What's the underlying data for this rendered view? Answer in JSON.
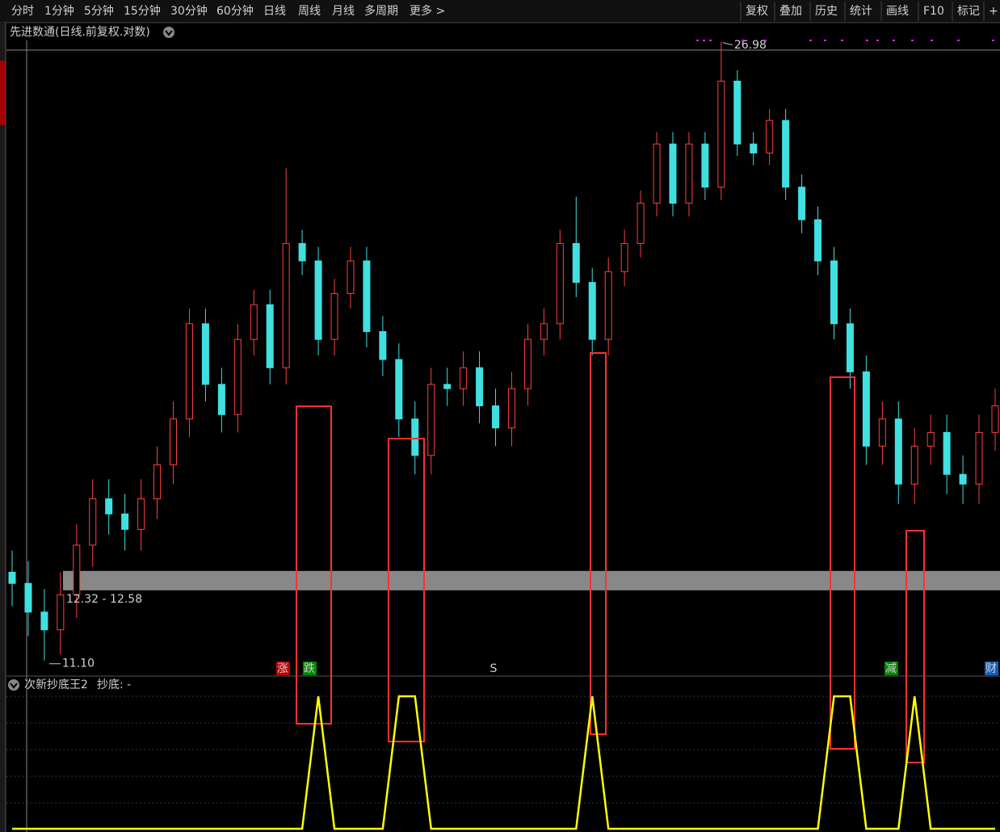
{
  "toolbar": {
    "periods": [
      "分时",
      "1分钟",
      "5分钟",
      "15分钟",
      "30分钟",
      "60分钟",
      "日线",
      "周线",
      "月线",
      "多周期",
      "更多 >"
    ],
    "active_index": 6,
    "tools": [
      "复权",
      "叠加",
      "历史",
      "统计",
      "画线",
      "F10",
      "标记",
      "+自"
    ]
  },
  "chart_title": "先进数通(日线.前复权.对数)",
  "high_label": "26.98",
  "low_label": "11.10",
  "band_label": "12.32 - 12.58",
  "band_range": [
    12.32,
    12.58
  ],
  "markers": [
    {
      "label": "涨",
      "color": "#c00000"
    },
    {
      "label": "跌",
      "color": "#008800"
    },
    {
      "label": "S",
      "color": "#ff2020"
    },
    {
      "label": "减",
      "color": "#008800"
    },
    {
      "label": "财",
      "color": "#1060c0"
    }
  ],
  "chart_data": [
    {
      "type": "candlestick",
      "log_scale": true,
      "ylim": [
        10.88,
        27.67
      ],
      "up_color": "#ff4040",
      "down_color": "#40e0e0",
      "open": [
        12.6,
        12.4,
        11.9,
        11.6,
        12.2,
        13.1,
        14.0,
        13.7,
        13.4,
        14.0,
        14.7,
        15.7,
        18.0,
        16.5,
        15.8,
        17.6,
        18.5,
        16.9,
        20.2,
        19.7,
        17.6,
        18.8,
        19.7,
        17.8,
        17.1,
        15.7,
        14.9,
        16.5,
        16.4,
        16.9,
        16.0,
        15.5,
        16.4,
        17.6,
        18.0,
        20.2,
        19.1,
        17.6,
        19.4,
        20.2,
        21.4,
        23.3,
        21.4,
        23.3,
        21.9,
        25.5,
        23.3,
        23.0,
        24.1,
        21.9,
        20.9,
        19.7,
        18.0,
        16.8,
        15.1,
        15.7,
        14.3,
        15.1,
        15.4,
        14.5,
        14.3,
        15.4
      ],
      "high": [
        13.0,
        12.8,
        12.3,
        12.6,
        13.5,
        14.4,
        14.4,
        14.1,
        14.4,
        15.1,
        16.1,
        18.4,
        18.4,
        16.9,
        18.0,
        18.9,
        18.9,
        22.5,
        20.6,
        20.1,
        19.2,
        20.1,
        20.1,
        18.2,
        17.5,
        16.1,
        16.9,
        16.9,
        17.3,
        17.3,
        16.4,
        16.8,
        18.0,
        18.4,
        20.6,
        21.6,
        19.5,
        19.8,
        20.6,
        21.8,
        23.7,
        23.7,
        23.7,
        23.7,
        26.98,
        25.9,
        23.7,
        24.5,
        24.5,
        22.3,
        21.3,
        20.1,
        18.4,
        17.2,
        16.1,
        16.1,
        15.5,
        15.8,
        15.8,
        14.9,
        15.8,
        16.4
      ],
      "low": [
        12.0,
        11.5,
        11.1,
        11.2,
        11.8,
        12.7,
        13.3,
        13.0,
        13.0,
        13.6,
        14.3,
        15.3,
        16.1,
        15.4,
        15.4,
        17.2,
        16.5,
        16.5,
        19.3,
        17.2,
        17.2,
        18.4,
        17.4,
        16.7,
        15.3,
        14.5,
        14.5,
        16.0,
        16.0,
        15.6,
        15.1,
        15.1,
        16.0,
        17.2,
        17.6,
        18.7,
        17.2,
        17.2,
        19.0,
        19.8,
        21.0,
        21.0,
        21.0,
        21.5,
        21.5,
        22.9,
        22.6,
        22.6,
        21.5,
        20.5,
        19.3,
        17.6,
        16.4,
        14.7,
        14.7,
        13.9,
        13.9,
        14.7,
        14.1,
        13.9,
        13.9,
        15.0
      ],
      "close": [
        12.4,
        11.9,
        11.6,
        12.2,
        13.1,
        14.0,
        13.7,
        13.4,
        14.0,
        14.7,
        15.7,
        18.0,
        16.5,
        15.8,
        17.6,
        18.5,
        16.9,
        20.2,
        19.7,
        17.6,
        18.8,
        19.7,
        17.8,
        17.1,
        15.7,
        14.9,
        16.5,
        16.4,
        16.9,
        16.0,
        15.5,
        16.4,
        17.6,
        18.0,
        20.2,
        19.1,
        17.6,
        19.4,
        20.2,
        21.4,
        23.3,
        21.4,
        23.3,
        21.9,
        25.5,
        23.3,
        23.0,
        24.1,
        21.9,
        20.9,
        19.7,
        18.0,
        16.8,
        15.1,
        15.7,
        14.3,
        15.1,
        15.4,
        14.5,
        14.3,
        15.4,
        16.0
      ]
    },
    {
      "type": "line",
      "title": "次新抄底王2",
      "ylim": [
        0,
        1.2
      ],
      "series": [
        {
          "name": "抄底",
          "readout": ": -",
          "color": "#ffff00",
          "values": [
            0,
            0,
            0,
            0,
            0,
            0,
            0,
            0,
            0,
            0,
            0,
            0,
            0,
            0,
            0,
            0,
            0,
            0,
            0,
            1,
            0,
            0,
            0,
            0,
            1,
            1,
            0,
            0,
            0,
            0,
            0,
            0,
            0,
            0,
            0,
            0,
            1,
            0,
            0,
            0,
            0,
            0,
            0,
            0,
            0,
            0,
            0,
            0,
            0,
            0,
            0,
            1,
            1,
            0,
            0,
            0,
            1,
            0,
            0,
            0,
            0,
            0
          ]
        }
      ]
    }
  ]
}
